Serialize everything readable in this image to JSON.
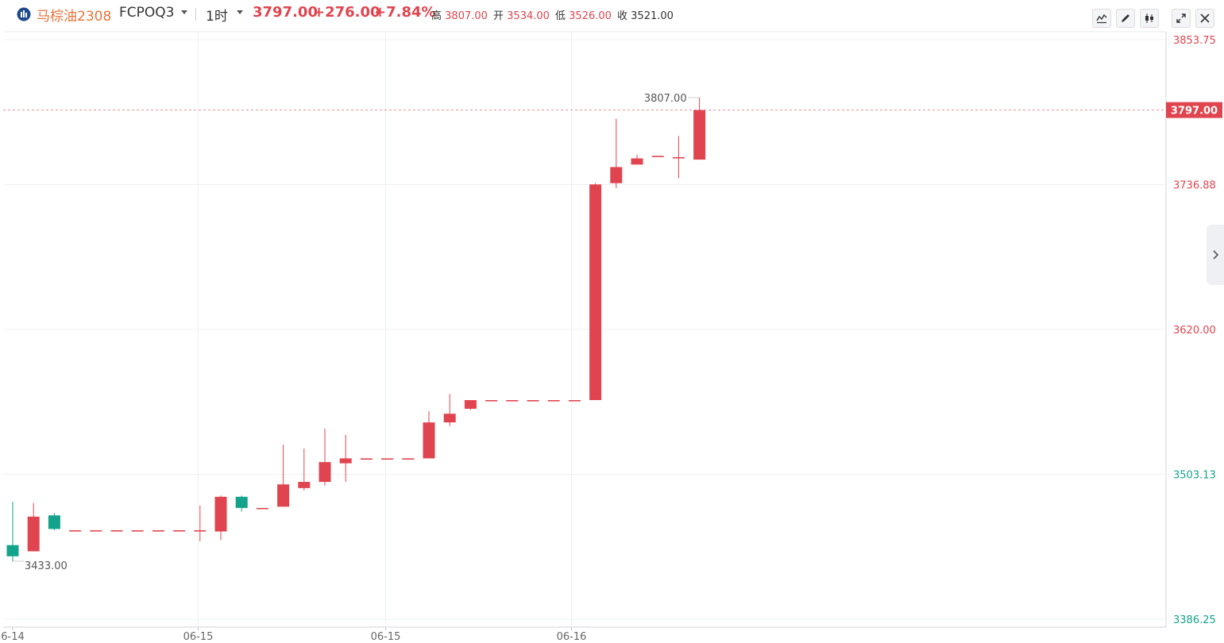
{
  "header": {
    "name": "马棕油2308",
    "code": "FCPOQ3",
    "interval": "1时",
    "last_price": "3797.00",
    "change": "+276.00",
    "change_pct": "+7.84%",
    "ohlc": [
      {
        "label": "高",
        "value": "3807.00"
      },
      {
        "label": "开",
        "value": "3534.00"
      },
      {
        "label": "低",
        "value": "3526.00"
      },
      {
        "label": "收",
        "value": "3521.00"
      }
    ]
  },
  "toolbar": {
    "icons": [
      "line-style-icon",
      "draw-pencil-icon",
      "candle-type-icon",
      "fullscreen-icon",
      "close-icon"
    ]
  },
  "colors": {
    "up": "#e0454f",
    "down": "#13a38b",
    "grid": "#eef0f3",
    "axis_text": "#666666"
  },
  "chart_data": {
    "type": "candlestick",
    "y_ticks": [
      "3853.75",
      "3736.88",
      "3620.00",
      "3503.13",
      "3386.25"
    ],
    "y_tick_values": [
      3853.75,
      3736.88,
      3620.0,
      3503.13,
      3386.25
    ],
    "ylim": [
      3386.25,
      3853.75
    ],
    "x_ticks": [
      "6-14",
      "06-15",
      "06-15",
      "06-16"
    ],
    "x_tick_index": [
      0,
      9,
      18,
      27
    ],
    "current_price_label": "3797.00",
    "max_annotation": {
      "label": "3807.00",
      "value": 3807.0,
      "index": 33
    },
    "min_annotation": {
      "label": "3433.00",
      "value": 3433.0,
      "index": 0
    },
    "candles": [
      {
        "o": 3446,
        "h": 3481,
        "l": 3433,
        "c": 3437
      },
      {
        "o": 3441,
        "h": 3480,
        "l": 3441,
        "c": 3469
      },
      {
        "o": 3470,
        "h": 3472,
        "l": 3458,
        "c": 3459
      },
      {
        "o": 3458,
        "h": 3458,
        "l": 3458,
        "c": 3458
      },
      {
        "o": 3458,
        "h": 3458,
        "l": 3458,
        "c": 3458
      },
      {
        "o": 3458,
        "h": 3458,
        "l": 3458,
        "c": 3458
      },
      {
        "o": 3458,
        "h": 3458,
        "l": 3458,
        "c": 3458
      },
      {
        "o": 3458,
        "h": 3458,
        "l": 3458,
        "c": 3458
      },
      {
        "o": 3458,
        "h": 3458,
        "l": 3458,
        "c": 3458
      },
      {
        "o": 3458,
        "h": 3478,
        "l": 3449,
        "c": 3458
      },
      {
        "o": 3457,
        "h": 3486,
        "l": 3450,
        "c": 3485
      },
      {
        "o": 3485,
        "h": 3486,
        "l": 3473,
        "c": 3476
      },
      {
        "o": 3476,
        "h": 3476,
        "l": 3476,
        "c": 3476
      },
      {
        "o": 3477,
        "h": 3527,
        "l": 3477,
        "c": 3495
      },
      {
        "o": 3492,
        "h": 3524,
        "l": 3490,
        "c": 3497
      },
      {
        "o": 3497,
        "h": 3540,
        "l": 3494,
        "c": 3513
      },
      {
        "o": 3512,
        "h": 3535,
        "l": 3497,
        "c": 3516
      },
      {
        "o": 3516,
        "h": 3516,
        "l": 3516,
        "c": 3516
      },
      {
        "o": 3516,
        "h": 3516,
        "l": 3516,
        "c": 3516
      },
      {
        "o": 3516,
        "h": 3516,
        "l": 3516,
        "c": 3516
      },
      {
        "o": 3516,
        "h": 3554,
        "l": 3516,
        "c": 3545
      },
      {
        "o": 3545,
        "h": 3568,
        "l": 3542,
        "c": 3552
      },
      {
        "o": 3556,
        "h": 3563,
        "l": 3555,
        "c": 3563
      },
      {
        "o": 3563,
        "h": 3563,
        "l": 3563,
        "c": 3563
      },
      {
        "o": 3563,
        "h": 3563,
        "l": 3563,
        "c": 3563
      },
      {
        "o": 3563,
        "h": 3563,
        "l": 3563,
        "c": 3563
      },
      {
        "o": 3563,
        "h": 3563,
        "l": 3563,
        "c": 3563
      },
      {
        "o": 3563,
        "h": 3563,
        "l": 3563,
        "c": 3563
      },
      {
        "o": 3563,
        "h": 3738,
        "l": 3563,
        "c": 3737
      },
      {
        "o": 3738,
        "h": 3790,
        "l": 3734,
        "c": 3751
      },
      {
        "o": 3753,
        "h": 3761,
        "l": 3753,
        "c": 3758
      },
      {
        "o": 3760,
        "h": 3760,
        "l": 3760,
        "c": 3760
      },
      {
        "o": 3759,
        "h": 3776,
        "l": 3742,
        "c": 3759
      },
      {
        "o": 3757,
        "h": 3807,
        "l": 3757,
        "c": 3797
      }
    ]
  }
}
